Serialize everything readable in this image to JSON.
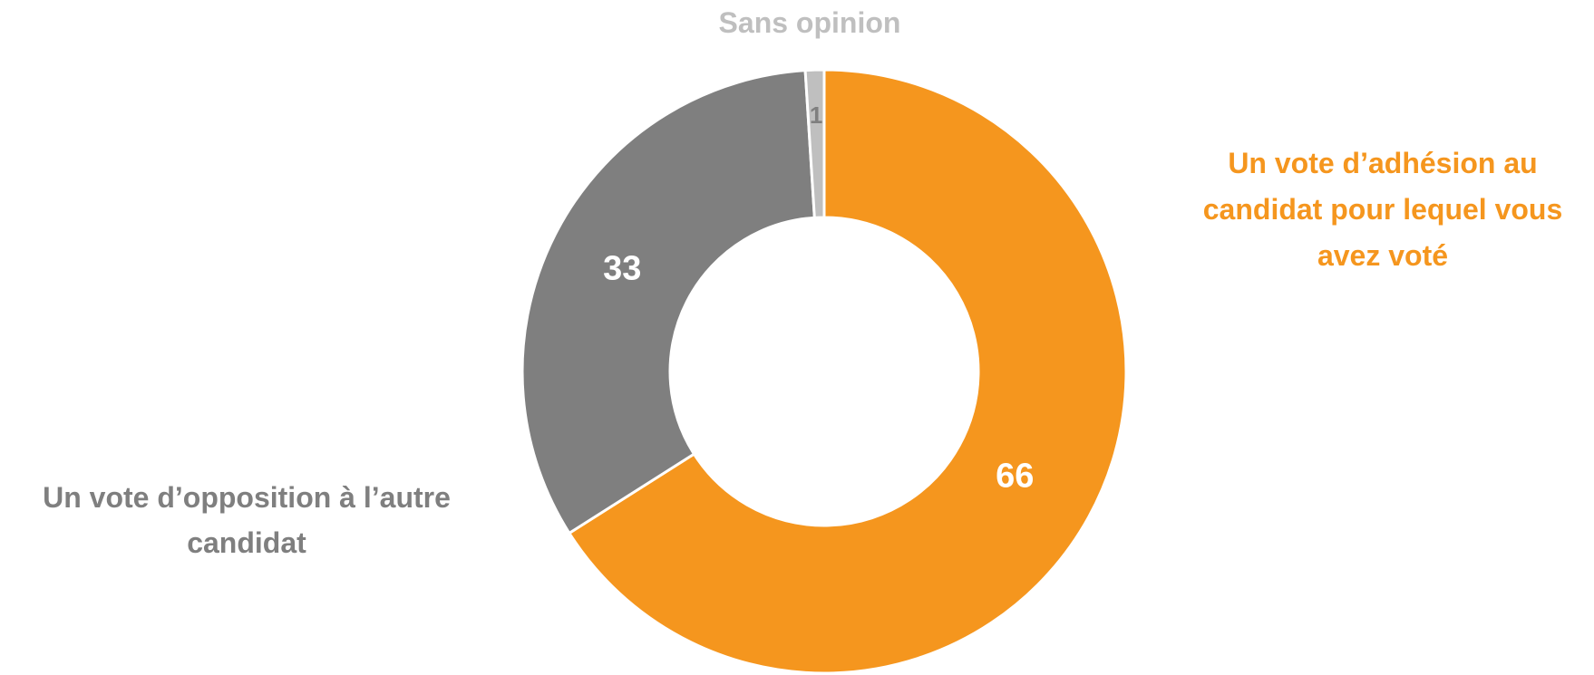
{
  "chart_data": {
    "type": "pie",
    "donut": true,
    "title": "",
    "categories": [
      "Un vote d’adhésion au candidat pour lequel vous avez voté",
      "Un vote d’opposition à l’autre candidat",
      "Sans opinion"
    ],
    "values": [
      66,
      33,
      1
    ],
    "colors": [
      "#F5961E",
      "#7F7F7F",
      "#BFBFBF"
    ],
    "data_label_colors": [
      "#FFFFFF",
      "#FFFFFF",
      "#7F7F7F"
    ],
    "label_lines": [
      [
        "Un vote d’adhésion au",
        "candidat pour lequel vous",
        "avez voté"
      ],
      [
        "Un vote d’opposition à l’autre",
        "candidat"
      ],
      [
        "Sans opinion"
      ]
    ],
    "legend": "category labels placed outside the ring"
  }
}
